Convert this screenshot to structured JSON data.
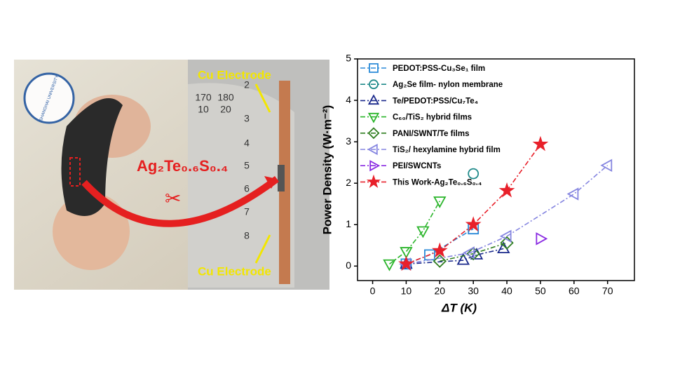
{
  "photo": {
    "logo_text": "SHANGHAI UNIVERSITY",
    "material": "Ag₂Te₀.₆S₀.₄",
    "electrode_labels": [
      "Cu Electrode",
      "Cu Electrode"
    ],
    "ruler_numbers": [
      "170",
      "180",
      "10",
      "20",
      "2",
      "3",
      "4",
      "5",
      "6",
      "7",
      "8"
    ]
  },
  "chart_data": {
    "type": "scatter",
    "x_label": "ΔT (K)",
    "y_label": "Power Density (W·m⁻²)",
    "xlim": [
      -4.5,
      78
    ],
    "ylim": [
      -0.35,
      5
    ],
    "xticks": [
      0,
      10,
      20,
      30,
      40,
      50,
      60,
      70
    ],
    "yticks": [
      0,
      1,
      2,
      3,
      4,
      5
    ],
    "legend": "upper left",
    "series": [
      {
        "name": "PEDOT:PSS-Cu₃Se₁ film",
        "color": "#2a8ad8",
        "marker": "square",
        "line": true,
        "x": [
          10,
          17,
          30
        ],
        "values": [
          0.05,
          0.27,
          0.9
        ]
      },
      {
        "name": "Ag₂Se film- nylon membrane",
        "color": "#1f8a8a",
        "marker": "circle",
        "line": true,
        "x": [
          30
        ],
        "values": [
          2.23
        ]
      },
      {
        "name": "Te/PEDOT:PSS/Cu₇Te₄",
        "color": "#1b2a8c",
        "marker": "triangle-up",
        "line": true,
        "x": [
          10,
          27,
          31,
          39
        ],
        "values": [
          0.05,
          0.14,
          0.27,
          0.42
        ]
      },
      {
        "name": "C₆₀/TiS₂ hybrid films",
        "color": "#2bb52b",
        "marker": "triangle-down",
        "line": true,
        "x": [
          5,
          10,
          15,
          20
        ],
        "values": [
          0.05,
          0.35,
          0.85,
          1.57
        ]
      },
      {
        "name": "PANI/SWNT/Te films",
        "color": "#2f7d1f",
        "marker": "diamond",
        "line": true,
        "x": [
          20,
          30,
          40
        ],
        "values": [
          0.12,
          0.3,
          0.56
        ]
      },
      {
        "name": "TiS₂/ hexylamine hybrid film",
        "color": "#8585e0",
        "marker": "triangle-left",
        "line": true,
        "x": [
          10,
          29,
          40,
          60,
          70
        ],
        "values": [
          0.05,
          0.32,
          0.72,
          1.74,
          2.43
        ]
      },
      {
        "name": "PEI/SWCNTs",
        "color": "#8a2be2",
        "marker": "triangle-right",
        "line": true,
        "x": [
          50
        ],
        "values": [
          0.66
        ]
      },
      {
        "name": "This Work-Ag₂Te₀.₆S₀.₄",
        "color": "#e8202a",
        "marker": "star",
        "line": true,
        "x": [
          10,
          20,
          30,
          40,
          50
        ],
        "values": [
          0.05,
          0.37,
          1.0,
          1.82,
          2.94
        ]
      }
    ]
  }
}
